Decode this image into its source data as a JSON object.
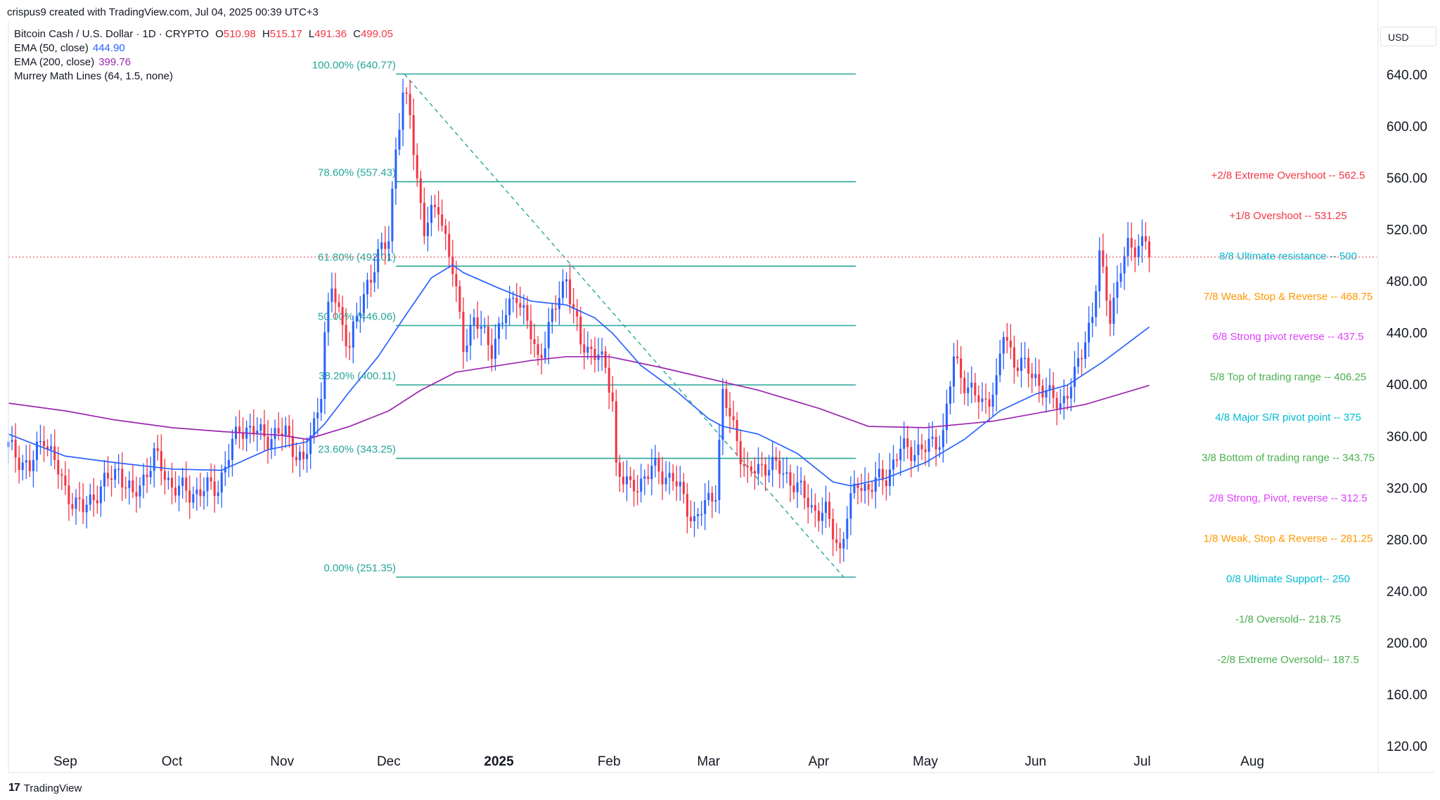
{
  "header": {
    "created_by": "crispus9 created with TradingView.com, Jul 04, 2025 00:39 UTC+3",
    "symbol": "Bitcoin Cash / U.S. Dollar · 1D · CRYPTO",
    "ohlc": {
      "o_label": "O",
      "o": "510.98",
      "h_label": "H",
      "h": "515.17",
      "l_label": "L",
      "l": "491.36",
      "c_label": "C",
      "c": "499.05"
    },
    "indicators": [
      {
        "label": "EMA (50, close)",
        "value": "444.90",
        "color": "#2962ff"
      },
      {
        "label": "EMA (200, close)",
        "value": "399.76",
        "color": "#9c27b0"
      },
      {
        "label": "Murrey Math Lines (64, 1.5, none)",
        "value": "",
        "color": "#131722"
      }
    ]
  },
  "currency_label": "USD",
  "branding": {
    "name": "TradingView"
  },
  "chart_data": {
    "type": "candlestick",
    "y_axis": {
      "min": 100,
      "max": 660,
      "ticks": [
        "640.00",
        "600.00",
        "560.00",
        "520.00",
        "480.00",
        "440.00",
        "400.00",
        "360.00",
        "320.00",
        "280.00",
        "240.00",
        "200.00",
        "160.00",
        "120.00"
      ]
    },
    "x_axis": {
      "labels": [
        {
          "text": "Sep",
          "date": "2024-09-01",
          "bold": false
        },
        {
          "text": "Oct",
          "date": "2024-10-01",
          "bold": false
        },
        {
          "text": "Nov",
          "date": "2024-11-01",
          "bold": false
        },
        {
          "text": "Dec",
          "date": "2024-12-01",
          "bold": false
        },
        {
          "text": "2025",
          "date": "2025-01-01",
          "bold": true
        },
        {
          "text": "Feb",
          "date": "2025-02-01",
          "bold": false
        },
        {
          "text": "Mar",
          "date": "2025-03-01",
          "bold": false
        },
        {
          "text": "Apr",
          "date": "2025-04-01",
          "bold": false
        },
        {
          "text": "May",
          "date": "2025-05-01",
          "bold": false
        },
        {
          "text": "Jun",
          "date": "2025-06-01",
          "bold": false
        },
        {
          "text": "Jul",
          "date": "2025-07-01",
          "bold": false
        },
        {
          "text": "Aug",
          "date": "2025-08-01",
          "bold": false
        }
      ],
      "range": [
        "2024-08-16",
        "2025-09-05"
      ]
    },
    "last_price": 499.05,
    "colors": {
      "up": "#2962ff",
      "down": "#f23645",
      "fib": "#26a69a",
      "ema50": "#2962ff",
      "ema200": "#9c27b0"
    },
    "price_anchors": [
      [
        "2024-08-16",
        352,
        355
      ],
      [
        "2024-08-22",
        335,
        337
      ],
      [
        "2024-08-26",
        362,
        365
      ],
      [
        "2024-09-01",
        318,
        320
      ],
      [
        "2024-09-06",
        303,
        294
      ],
      [
        "2024-09-10",
        318,
        317
      ],
      [
        "2024-09-16",
        335,
        337
      ],
      [
        "2024-09-20",
        312,
        310
      ],
      [
        "2024-09-26",
        345,
        347
      ],
      [
        "2024-10-01",
        322,
        320
      ],
      [
        "2024-10-06",
        316,
        318
      ],
      [
        "2024-10-14",
        322,
        322
      ],
      [
        "2024-10-20",
        368,
        367
      ],
      [
        "2024-10-28",
        360,
        358
      ],
      [
        "2024-11-02",
        363,
        360
      ],
      [
        "2024-11-07",
        338,
        328
      ],
      [
        "2024-11-10",
        370,
        368
      ],
      [
        "2024-11-12",
        398,
        398
      ],
      [
        "2024-11-13",
        438,
        440
      ],
      [
        "2024-11-15",
        475,
        477
      ],
      [
        "2024-11-20",
        430,
        429
      ],
      [
        "2024-11-25",
        480,
        479
      ],
      [
        "2024-12-01",
        515,
        513
      ],
      [
        "2024-12-03",
        585,
        583
      ],
      [
        "2024-12-05",
        622,
        622
      ],
      [
        "2024-12-07",
        610,
        609
      ],
      [
        "2024-12-09",
        560,
        558
      ],
      [
        "2024-12-11",
        520,
        519
      ],
      [
        "2024-12-15",
        540,
        541
      ],
      [
        "2024-12-19",
        488,
        487
      ],
      [
        "2024-12-22",
        432,
        429
      ],
      [
        "2024-12-25",
        450,
        451
      ],
      [
        "2024-12-30",
        430,
        429
      ],
      [
        "2025-01-06",
        473,
        474
      ],
      [
        "2025-01-12",
        420,
        418
      ],
      [
        "2025-01-16",
        452,
        450
      ],
      [
        "2025-01-20",
        485,
        488
      ],
      [
        "2025-01-24",
        430,
        428
      ],
      [
        "2025-01-29",
        426,
        426
      ],
      [
        "2025-02-02",
        390,
        388
      ],
      [
        "2025-02-03",
        338,
        337
      ],
      [
        "2025-02-07",
        318,
        316
      ],
      [
        "2025-02-13",
        335,
        335
      ],
      [
        "2025-02-19",
        328,
        325
      ],
      [
        "2025-02-25",
        295,
        297
      ],
      [
        "2025-03-01",
        310,
        312
      ],
      [
        "2025-03-03",
        320,
        324
      ],
      [
        "2025-03-05",
        392,
        393
      ],
      [
        "2025-03-09",
        358,
        358
      ],
      [
        "2025-03-12",
        330,
        331
      ],
      [
        "2025-03-18",
        340,
        342
      ],
      [
        "2025-03-25",
        325,
        326
      ],
      [
        "2025-03-30",
        305,
        306
      ],
      [
        "2025-04-03",
        300,
        297
      ],
      [
        "2025-04-07",
        272,
        270
      ],
      [
        "2025-04-09",
        300,
        302
      ],
      [
        "2025-04-12",
        325,
        325
      ],
      [
        "2025-04-15",
        320,
        318
      ],
      [
        "2025-04-20",
        330,
        331
      ],
      [
        "2025-04-24",
        350,
        352
      ],
      [
        "2025-05-01",
        350,
        349
      ],
      [
        "2025-05-06",
        362,
        360
      ],
      [
        "2025-05-09",
        420,
        422
      ],
      [
        "2025-05-13",
        398,
        395
      ],
      [
        "2025-05-17",
        385,
        383
      ],
      [
        "2025-05-21",
        400,
        402
      ],
      [
        "2025-05-23",
        440,
        442
      ],
      [
        "2025-05-26",
        420,
        418
      ],
      [
        "2025-06-01",
        406,
        408
      ],
      [
        "2025-06-05",
        390,
        392
      ],
      [
        "2025-06-08",
        386,
        384
      ],
      [
        "2025-06-12",
        405,
        406
      ],
      [
        "2025-06-15",
        437,
        437
      ],
      [
        "2025-06-17",
        455,
        456
      ],
      [
        "2025-06-19",
        498,
        500
      ],
      [
        "2025-06-22",
        455,
        453
      ],
      [
        "2025-06-25",
        490,
        492
      ],
      [
        "2025-06-27",
        505,
        504
      ],
      [
        "2025-06-30",
        510,
        510
      ],
      [
        "2025-07-02",
        512,
        510
      ],
      [
        "2025-07-03",
        499.05,
        499
      ]
    ],
    "ema50_anchors": [
      [
        "2024-08-16",
        362
      ],
      [
        "2024-09-01",
        345
      ],
      [
        "2024-09-15",
        340
      ],
      [
        "2024-10-01",
        335
      ],
      [
        "2024-10-15",
        334
      ],
      [
        "2024-10-28",
        350
      ],
      [
        "2024-11-08",
        356
      ],
      [
        "2024-11-13",
        370
      ],
      [
        "2024-11-20",
        395
      ],
      [
        "2024-11-28",
        422
      ],
      [
        "2024-12-06",
        455
      ],
      [
        "2024-12-13",
        483
      ],
      [
        "2024-12-19",
        493
      ],
      [
        "2024-12-22",
        487
      ],
      [
        "2025-01-01",
        475
      ],
      [
        "2025-01-10",
        465
      ],
      [
        "2025-01-20",
        462
      ],
      [
        "2025-01-28",
        452
      ],
      [
        "2025-02-02",
        440
      ],
      [
        "2025-02-10",
        415
      ],
      [
        "2025-02-20",
        395
      ],
      [
        "2025-03-01",
        374
      ],
      [
        "2025-03-05",
        368
      ],
      [
        "2025-03-15",
        362
      ],
      [
        "2025-03-26",
        347
      ],
      [
        "2025-04-05",
        325
      ],
      [
        "2025-04-10",
        322
      ],
      [
        "2025-04-20",
        328
      ],
      [
        "2025-05-01",
        340
      ],
      [
        "2025-05-12",
        358
      ],
      [
        "2025-05-22",
        380
      ],
      [
        "2025-06-01",
        393
      ],
      [
        "2025-06-10",
        400
      ],
      [
        "2025-06-20",
        418
      ],
      [
        "2025-07-03",
        444.9
      ]
    ],
    "ema200_anchors": [
      [
        "2024-08-16",
        386
      ],
      [
        "2024-09-01",
        380
      ],
      [
        "2024-09-15",
        373
      ],
      [
        "2024-10-01",
        367
      ],
      [
        "2024-10-15",
        364
      ],
      [
        "2024-11-01",
        361
      ],
      [
        "2024-11-08",
        358
      ],
      [
        "2024-11-20",
        368
      ],
      [
        "2024-12-01",
        380
      ],
      [
        "2024-12-10",
        396
      ],
      [
        "2024-12-20",
        410
      ],
      [
        "2025-01-10",
        419
      ],
      [
        "2025-01-20",
        422
      ],
      [
        "2025-02-01",
        422
      ],
      [
        "2025-02-15",
        414
      ],
      [
        "2025-03-01",
        405
      ],
      [
        "2025-03-15",
        396
      ],
      [
        "2025-04-01",
        382
      ],
      [
        "2025-04-15",
        368
      ],
      [
        "2025-05-01",
        367
      ],
      [
        "2025-05-20",
        372
      ],
      [
        "2025-06-01",
        378
      ],
      [
        "2025-06-15",
        385
      ],
      [
        "2025-07-03",
        399.76
      ]
    ],
    "fib_retracement": {
      "start_date": "2024-12-05",
      "end_date": "2025-04-08",
      "high": 640.77,
      "low": 251.35,
      "levels": [
        {
          "label": "100.00% (640.77)",
          "value": 640.77
        },
        {
          "label": "78.60% (557.43)",
          "value": 557.43
        },
        {
          "label": "61.80% (492.01)",
          "value": 492.01
        },
        {
          "label": "50.00% (446.06)",
          "value": 446.06
        },
        {
          "label": "38.20% (400.11)",
          "value": 400.11
        },
        {
          "label": "23.60% (343.25)",
          "value": 343.25
        },
        {
          "label": "0.00% (251.35)",
          "value": 251.35
        }
      ]
    },
    "murrey_math": [
      {
        "label": "+2/8 Extreme Overshoot --  562.5",
        "value": 562.5,
        "color": "#f23645"
      },
      {
        "label": "+1/8 Overshoot --  531.25",
        "value": 531.25,
        "color": "#f23645"
      },
      {
        "label": "8/8 Ultimate resistance --  500",
        "value": 500,
        "color": "#00bcd4"
      },
      {
        "label": "7/8 Weak, Stop & Reverse --  468.75",
        "value": 468.75,
        "color": "#ff9800"
      },
      {
        "label": "6/8 Strong pivot reverse --  437.5",
        "value": 437.5,
        "color": "#e040fb"
      },
      {
        "label": "5/8 Top of trading range --  406.25",
        "value": 406.25,
        "color": "#4caf50"
      },
      {
        "label": "4/8 Major S/R pivot point --  375",
        "value": 375,
        "color": "#00bcd4"
      },
      {
        "label": "3/8 Bottom of trading range --  343.75",
        "value": 343.75,
        "color": "#4caf50"
      },
      {
        "label": "2/8 Strong, Pivot, reverse --  312.5",
        "value": 312.5,
        "color": "#e040fb"
      },
      {
        "label": "1/8 Weak, Stop & Reverse --  281.25",
        "value": 281.25,
        "color": "#ff9800"
      },
      {
        "label": "0/8 Ultimate Support--  250",
        "value": 250,
        "color": "#00bcd4"
      },
      {
        "label": "-1/8 Oversold--  218.75",
        "value": 218.75,
        "color": "#4caf50"
      },
      {
        "label": "-2/8 Extreme Oversold--  187.5",
        "value": 187.5,
        "color": "#4caf50"
      }
    ]
  }
}
